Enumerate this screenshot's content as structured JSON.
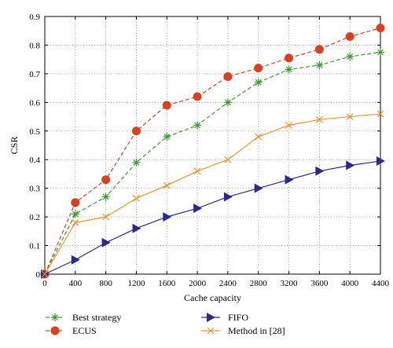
{
  "chart_data": {
    "type": "line",
    "title": "",
    "xlabel": "Cache capacity",
    "ylabel": "CSR",
    "x": [
      0,
      400,
      800,
      1200,
      1600,
      2000,
      2400,
      2800,
      3200,
      3600,
      4000,
      4400
    ],
    "xticks": [
      "0",
      "400",
      "800",
      "1200",
      "1600",
      "2000",
      "2400",
      "2800",
      "3200",
      "3600",
      "4000",
      "4400"
    ],
    "yticks": [
      "0",
      "0.1",
      "0.2",
      "0.3",
      "0.4",
      "0.5",
      "0.6",
      "0.7",
      "0.8",
      "0.9"
    ],
    "xlim": [
      0,
      4400
    ],
    "ylim": [
      0,
      0.9
    ],
    "grid": true,
    "legend_position": "bottom",
    "series": [
      {
        "name": "Best strategy",
        "color": "#3c9a2e",
        "marker": "asterisk",
        "dash": "dashed",
        "values": [
          0,
          0.21,
          0.27,
          0.39,
          0.48,
          0.52,
          0.6,
          0.67,
          0.715,
          0.73,
          0.76,
          0.775
        ]
      },
      {
        "name": "ECUS",
        "color": "#d9401f",
        "marker": "circle",
        "dash": "dashed",
        "values": [
          0,
          0.25,
          0.33,
          0.5,
          0.59,
          0.62,
          0.69,
          0.72,
          0.755,
          0.785,
          0.83,
          0.86
        ]
      },
      {
        "name": "FIFO",
        "color": "#2b2a8c",
        "marker": "triangle-right",
        "dash": "solid",
        "values": [
          0,
          0.05,
          0.11,
          0.16,
          0.2,
          0.23,
          0.27,
          0.3,
          0.33,
          0.36,
          0.38,
          0.395
        ]
      },
      {
        "name": "Method in [28]",
        "color": "#f0922b",
        "marker": "x",
        "dash": "solid",
        "values": [
          0,
          0.18,
          0.2,
          0.265,
          0.31,
          0.36,
          0.4,
          0.48,
          0.52,
          0.54,
          0.55,
          0.56
        ]
      }
    ]
  }
}
